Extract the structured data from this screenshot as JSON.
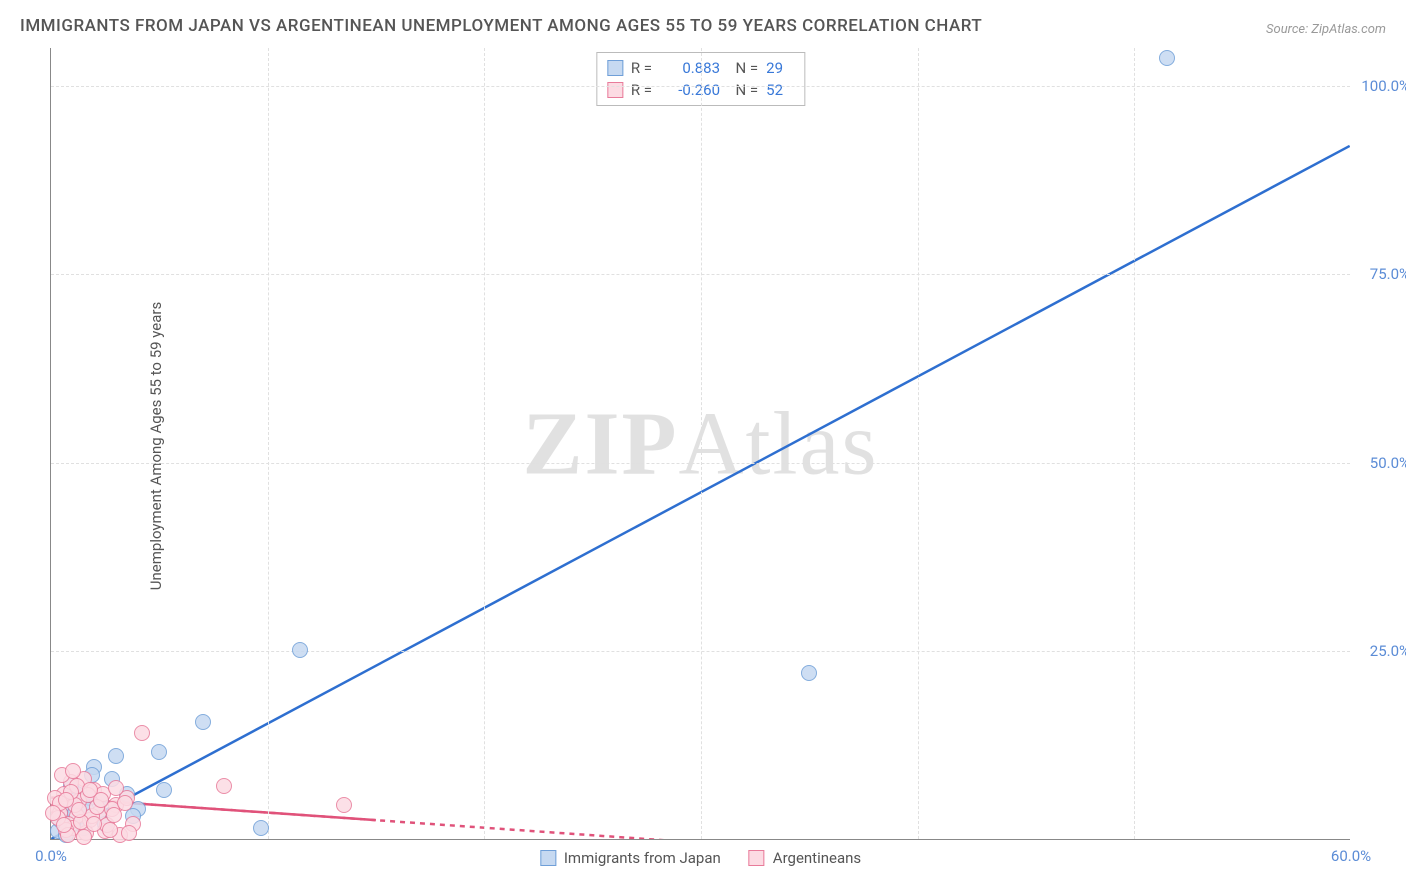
{
  "title": "IMMIGRANTS FROM JAPAN VS ARGENTINEAN UNEMPLOYMENT AMONG AGES 55 TO 59 YEARS CORRELATION CHART",
  "source": "Source: ZipAtlas.com",
  "ylabel": "Unemployment Among Ages 55 to 59 years",
  "watermark_a": "ZIP",
  "watermark_b": "Atlas",
  "chart": {
    "type": "scatter",
    "xlim": [
      0,
      60
    ],
    "ylim": [
      0,
      105
    ],
    "xticks": [
      0,
      60
    ],
    "xtick_labels": [
      "0.0%",
      "60.0%"
    ],
    "yticks": [
      25,
      50,
      75,
      100
    ],
    "ytick_labels": [
      "25.0%",
      "50.0%",
      "75.0%",
      "100.0%"
    ],
    "grid_color": "#e0e0e0",
    "background_color": "#ffffff",
    "axis_color": "#888888",
    "series": [
      {
        "name": "Immigrants from Japan",
        "marker_fill": "#c6d9f1",
        "marker_stroke": "#6f9fd8",
        "marker_radius": 8,
        "marker_opacity": 0.85,
        "line_color": "#2e6fd0",
        "line_width": 2.5,
        "line_dash": "none",
        "r_value": "0.883",
        "n_value": "29",
        "trend": {
          "x1": 0,
          "y1": 0,
          "x2": 60,
          "y2": 92
        },
        "points": [
          [
            51.5,
            103.5
          ],
          [
            35.0,
            22.0
          ],
          [
            11.5,
            25.0
          ],
          [
            7.0,
            15.5
          ],
          [
            5.0,
            11.5
          ],
          [
            5.2,
            6.5
          ],
          [
            3.0,
            11.0
          ],
          [
            9.7,
            1.5
          ],
          [
            4.0,
            4.0
          ],
          [
            2.8,
            8.0
          ],
          [
            3.5,
            6.0
          ],
          [
            2.2,
            3.5
          ],
          [
            1.8,
            5.5
          ],
          [
            1.5,
            1.5
          ],
          [
            2.5,
            2.0
          ],
          [
            0.8,
            4.5
          ],
          [
            1.0,
            2.0
          ],
          [
            0.5,
            3.0
          ],
          [
            1.2,
            6.0
          ],
          [
            0.3,
            1.0
          ],
          [
            0.7,
            0.5
          ],
          [
            2.0,
            9.5
          ],
          [
            3.8,
            3.0
          ],
          [
            1.6,
            4.0
          ],
          [
            0.9,
            7.0
          ],
          [
            2.3,
            5.0
          ],
          [
            1.1,
            3.5
          ],
          [
            0.4,
            2.5
          ],
          [
            1.9,
            8.5
          ]
        ]
      },
      {
        "name": "Argentineans",
        "marker_fill": "#fcdbe3",
        "marker_stroke": "#e87b9a",
        "marker_radius": 8,
        "marker_opacity": 0.85,
        "line_color": "#e0527a",
        "line_width": 2.5,
        "line_dash": "5,5",
        "r_value": "-0.260",
        "n_value": "52",
        "trend": {
          "x1": 0,
          "y1": 5.5,
          "x2": 30,
          "y2": -0.5
        },
        "points": [
          [
            4.2,
            14.0
          ],
          [
            8.0,
            7.0
          ],
          [
            13.5,
            4.5
          ],
          [
            3.0,
            4.5
          ],
          [
            0.5,
            5.0
          ],
          [
            1.2,
            3.0
          ],
          [
            2.0,
            6.5
          ],
          [
            0.8,
            2.0
          ],
          [
            1.5,
            8.0
          ],
          [
            2.5,
            1.0
          ],
          [
            3.5,
            5.5
          ],
          [
            0.3,
            4.0
          ],
          [
            1.0,
            1.5
          ],
          [
            2.2,
            3.5
          ],
          [
            0.6,
            6.0
          ],
          [
            1.8,
            2.5
          ],
          [
            3.2,
            0.5
          ],
          [
            0.9,
            7.5
          ],
          [
            2.8,
            4.0
          ],
          [
            1.3,
            5.0
          ],
          [
            0.4,
            3.5
          ],
          [
            1.6,
            0.8
          ],
          [
            2.4,
            6.0
          ],
          [
            0.7,
            1.2
          ],
          [
            1.1,
            4.5
          ],
          [
            3.8,
            2.0
          ],
          [
            0.2,
            5.5
          ],
          [
            1.9,
            3.0
          ],
          [
            2.6,
            1.8
          ],
          [
            0.5,
            8.5
          ],
          [
            1.4,
            2.2
          ],
          [
            3.0,
            6.8
          ],
          [
            0.8,
            0.5
          ],
          [
            2.1,
            4.2
          ],
          [
            1.7,
            5.8
          ],
          [
            0.3,
            2.8
          ],
          [
            2.9,
            3.2
          ],
          [
            1.2,
            7.0
          ],
          [
            0.6,
            1.8
          ],
          [
            2.3,
            5.2
          ],
          [
            1.5,
            0.3
          ],
          [
            3.4,
            4.8
          ],
          [
            0.9,
            6.2
          ],
          [
            2.0,
            2.0
          ],
          [
            1.0,
            9.0
          ],
          [
            0.4,
            4.8
          ],
          [
            2.7,
            1.2
          ],
          [
            1.3,
            3.8
          ],
          [
            0.7,
            5.2
          ],
          [
            3.6,
            0.8
          ],
          [
            1.8,
            6.5
          ],
          [
            0.1,
            3.5
          ]
        ]
      }
    ],
    "legend_bottom": [
      {
        "label": "Immigrants from Japan",
        "fill": "#c6d9f1",
        "stroke": "#6f9fd8"
      },
      {
        "label": "Argentineans",
        "fill": "#fcdbe3",
        "stroke": "#e87b9a"
      }
    ]
  }
}
